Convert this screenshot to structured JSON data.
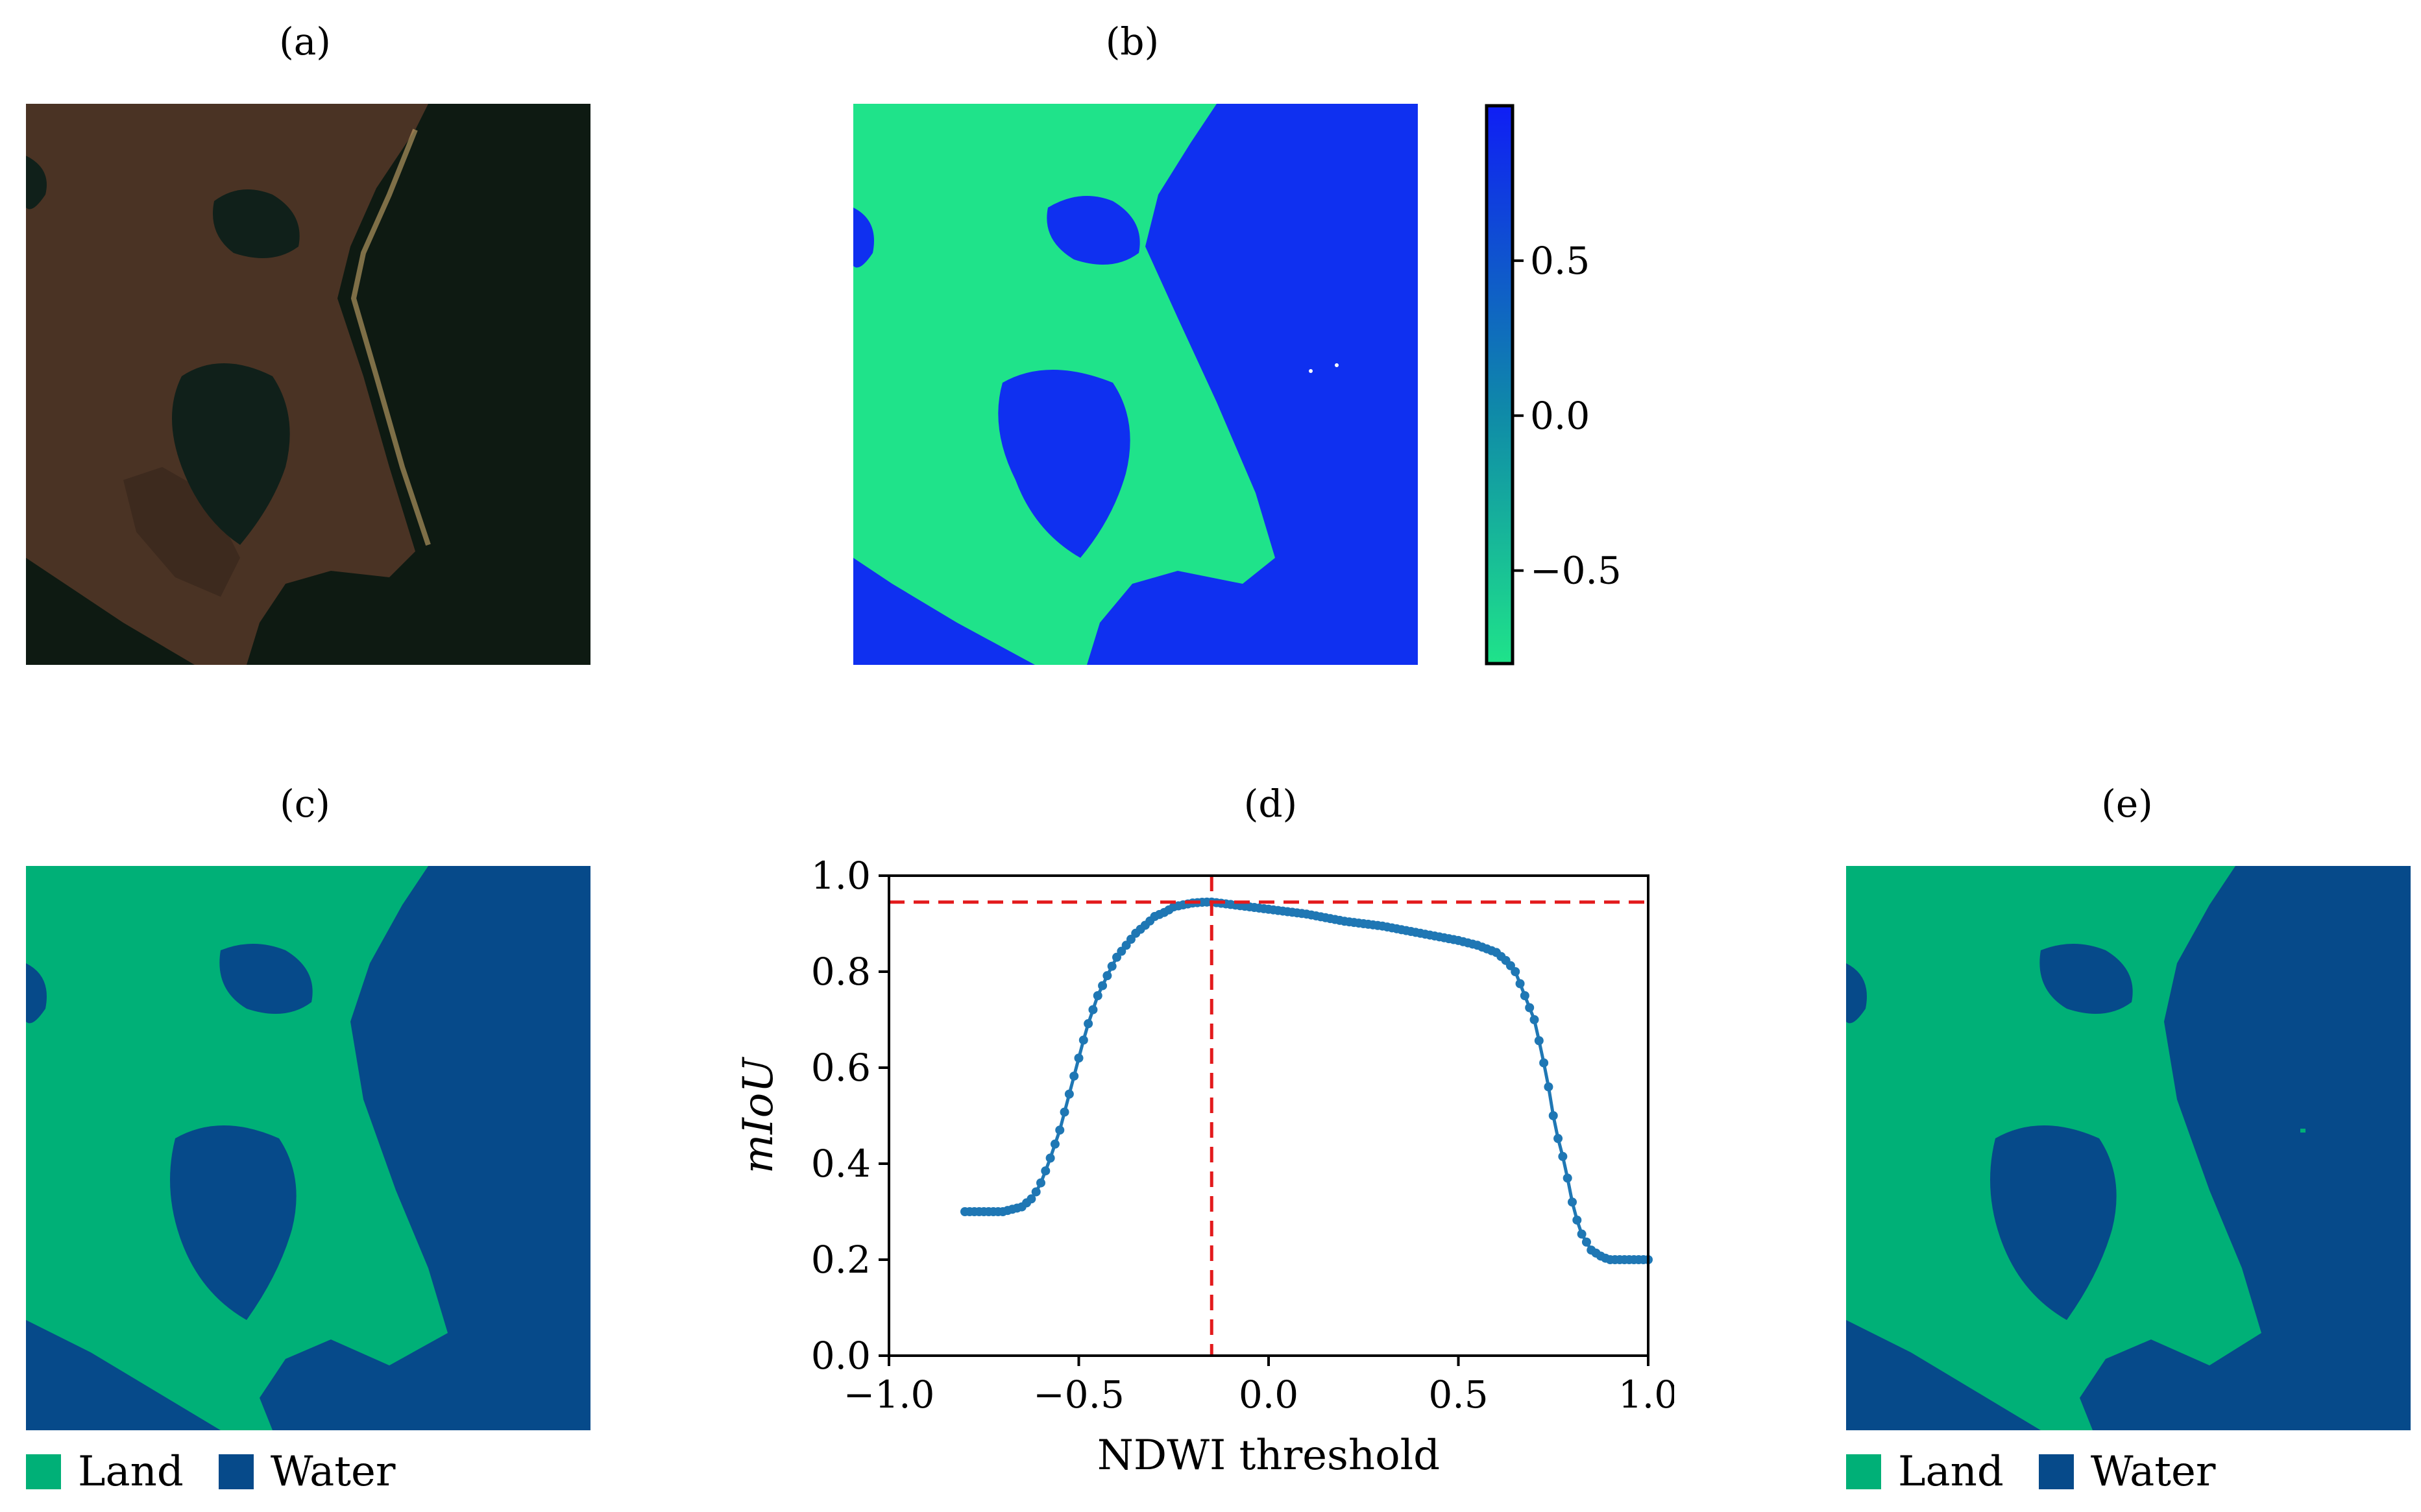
{
  "panels": {
    "a": {
      "label": "(a)"
    },
    "b": {
      "label": "(b)"
    },
    "c": {
      "label": "(c)"
    },
    "d": {
      "label": "(d)"
    },
    "e": {
      "label": "(e)"
    }
  },
  "colors": {
    "land_mask": "#00b077",
    "water_mask": "#064a8a",
    "ndwi_land": "#1fe38a",
    "ndwi_water": "#0f30f0",
    "rgb_land": "#4a3324",
    "rgb_water": "#0e1a12",
    "curve": "#1f77b4",
    "ref_line": "#e31a1c"
  },
  "legend": {
    "land_label": "Land",
    "water_label": "Water"
  },
  "colorbar": {
    "ticks": [
      {
        "value": 0.5,
        "label": "0.5"
      },
      {
        "value": 0.0,
        "label": "0.0"
      },
      {
        "value": -0.5,
        "label": "−0.5"
      }
    ],
    "range": [
      -0.8,
      1.0
    ]
  },
  "chart_data": {
    "type": "line",
    "title": "(d)",
    "xlabel": "NDWI threshold",
    "ylabel": "mIoU",
    "xlim": [
      -1.0,
      1.0
    ],
    "ylim": [
      0.0,
      1.0
    ],
    "xticks": [
      {
        "value": -1.0,
        "label": "−1.0"
      },
      {
        "value": -0.5,
        "label": "−0.5"
      },
      {
        "value": 0.0,
        "label": "0.0"
      },
      {
        "value": 0.5,
        "label": "0.5"
      },
      {
        "value": 1.0,
        "label": "1.0"
      }
    ],
    "yticks": [
      {
        "value": 0.0,
        "label": "0.0"
      },
      {
        "value": 0.2,
        "label": "0.2"
      },
      {
        "value": 0.4,
        "label": "0.4"
      },
      {
        "value": 0.6,
        "label": "0.6"
      },
      {
        "value": 0.8,
        "label": "0.8"
      },
      {
        "value": 1.0,
        "label": "1.0"
      }
    ],
    "optimum": {
      "x": -0.15,
      "y": 0.945
    },
    "anchors": {
      "x": [
        -0.8,
        -0.75,
        -0.7,
        -0.65,
        -0.62,
        -0.6,
        -0.58,
        -0.55,
        -0.52,
        -0.5,
        -0.48,
        -0.45,
        -0.42,
        -0.4,
        -0.37,
        -0.35,
        -0.32,
        -0.3,
        -0.27,
        -0.25,
        -0.22,
        -0.2,
        -0.17,
        -0.15,
        -0.1,
        -0.05,
        0.0,
        0.1,
        0.2,
        0.3,
        0.4,
        0.5,
        0.55,
        0.6,
        0.63,
        0.65,
        0.67,
        0.7,
        0.72,
        0.74,
        0.75,
        0.76,
        0.78,
        0.8,
        0.82,
        0.85,
        0.88,
        0.9,
        0.95,
        1.0
      ],
      "y": [
        0.3,
        0.3,
        0.3,
        0.31,
        0.33,
        0.36,
        0.4,
        0.47,
        0.56,
        0.62,
        0.68,
        0.75,
        0.8,
        0.83,
        0.86,
        0.88,
        0.9,
        0.915,
        0.925,
        0.935,
        0.94,
        0.943,
        0.945,
        0.945,
        0.94,
        0.935,
        0.93,
        0.92,
        0.905,
        0.895,
        0.88,
        0.865,
        0.855,
        0.84,
        0.82,
        0.8,
        0.76,
        0.7,
        0.63,
        0.55,
        0.5,
        0.46,
        0.4,
        0.32,
        0.26,
        0.22,
        0.205,
        0.2,
        0.2,
        0.2
      ]
    }
  }
}
